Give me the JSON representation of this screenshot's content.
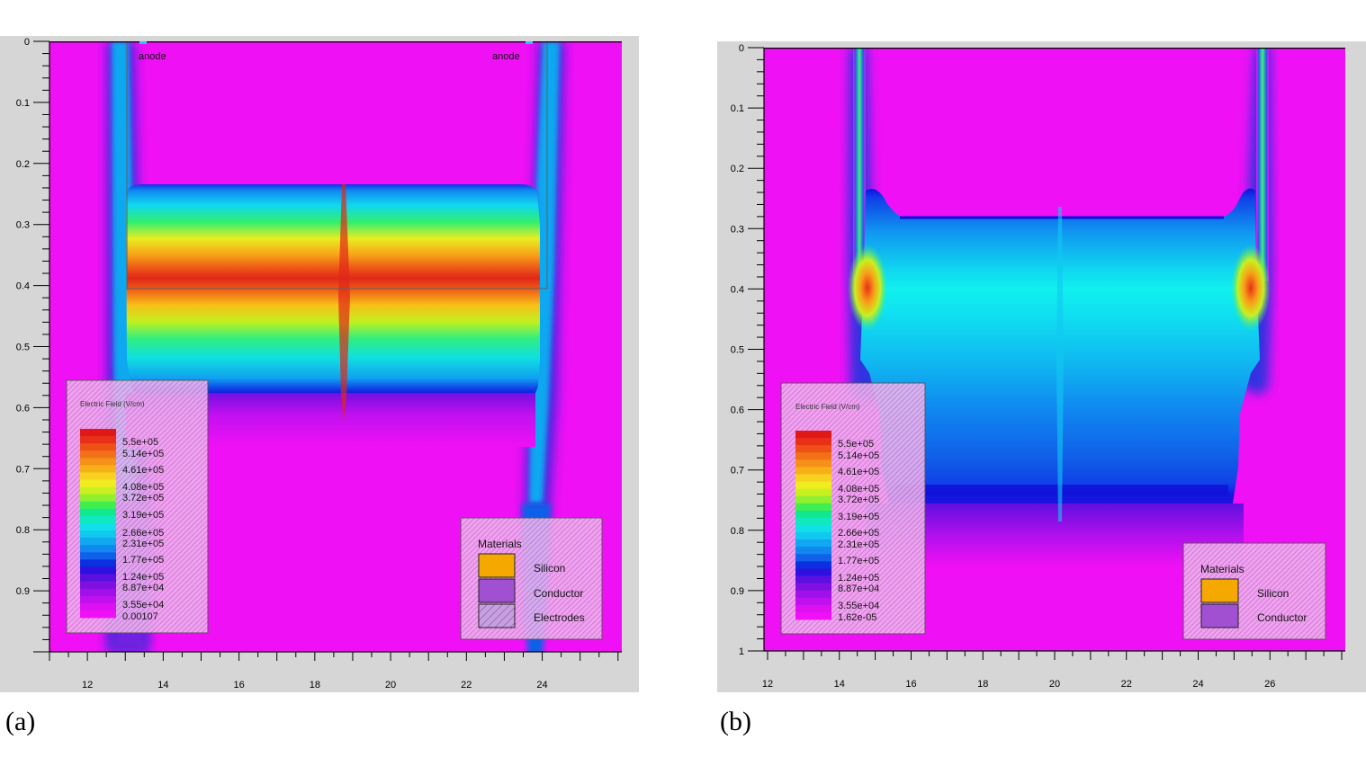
{
  "captions": {
    "a": "(a)",
    "b": "(b)"
  },
  "colorbar_colors": [
    "#e01818",
    "#e83018",
    "#ee5018",
    "#f27018",
    "#f59018",
    "#f8b018",
    "#f8d020",
    "#f0ec20",
    "#c8f020",
    "#90f030",
    "#40ee50",
    "#10e890",
    "#10e8c0",
    "#10e0e8",
    "#10c8f0",
    "#10a8f0",
    "#1088f0",
    "#1060e8",
    "#0a30e0",
    "#3010e0",
    "#5a10e0",
    "#8010e0",
    "#a010e8",
    "#c010f0",
    "#de10f2",
    "#f010f5"
  ],
  "chart_data": [
    {
      "type": "heatmap",
      "panel": "a",
      "title": "",
      "xlabel": "",
      "ylabel": "",
      "x_ticks": [
        "12",
        "14",
        "16",
        "18",
        "20",
        "22",
        "24"
      ],
      "y_ticks": [
        "0",
        "0.1",
        "0.2",
        "0.3",
        "0.4",
        "0.5",
        "0.6",
        "0.7",
        "0.8",
        "0.9"
      ],
      "xlim": [
        11,
        26.1
      ],
      "ylim": [
        0,
        1.0
      ],
      "annotations": [
        "anode",
        "anode"
      ],
      "colorbar": {
        "title": "Electric Field (V/cm)",
        "labels": [
          "5.5e+05",
          "5.14e+05",
          "4.61e+05",
          "4.08e+05",
          "3.72e+05",
          "3.19e+05",
          "2.66e+05",
          "2.31e+05",
          "1.77e+05",
          "1.24e+05",
          "8.87e+04",
          "3.55e+04",
          "0.00107"
        ]
      },
      "materials": {
        "title": "Materials",
        "items": [
          "Silicon",
          "Conductor",
          "Electrodes"
        ]
      },
      "colors": {
        "silicon": "#f5a800",
        "conductor": "#a050d0",
        "background": "#f010f5"
      }
    },
    {
      "type": "heatmap",
      "panel": "b",
      "title": "",
      "xlabel": "",
      "ylabel": "",
      "x_ticks": [
        "12",
        "14",
        "16",
        "18",
        "20",
        "22",
        "24",
        "26"
      ],
      "y_ticks": [
        "0",
        "0.1",
        "0.2",
        "0.3",
        "0.4",
        "0.5",
        "0.6",
        "0.7",
        "0.8",
        "0.9",
        "1"
      ],
      "xlim": [
        11.9,
        28.1
      ],
      "ylim": [
        0,
        1.0
      ],
      "colorbar": {
        "title": "Electric Field (V/cm)",
        "labels": [
          "5.5e+05",
          "5.14e+05",
          "4.61e+05",
          "4.08e+05",
          "3.72e+05",
          "3.19e+05",
          "2.66e+05",
          "2.31e+05",
          "1.77e+05",
          "1.24e+05",
          "8.87e+04",
          "3.55e+04",
          "1.62e-05"
        ]
      },
      "materials": {
        "title": "Materials",
        "items": [
          "Silicon",
          "Conductor"
        ]
      },
      "colors": {
        "silicon": "#f5a800",
        "conductor": "#a050d0",
        "background": "#f010f5"
      }
    }
  ]
}
